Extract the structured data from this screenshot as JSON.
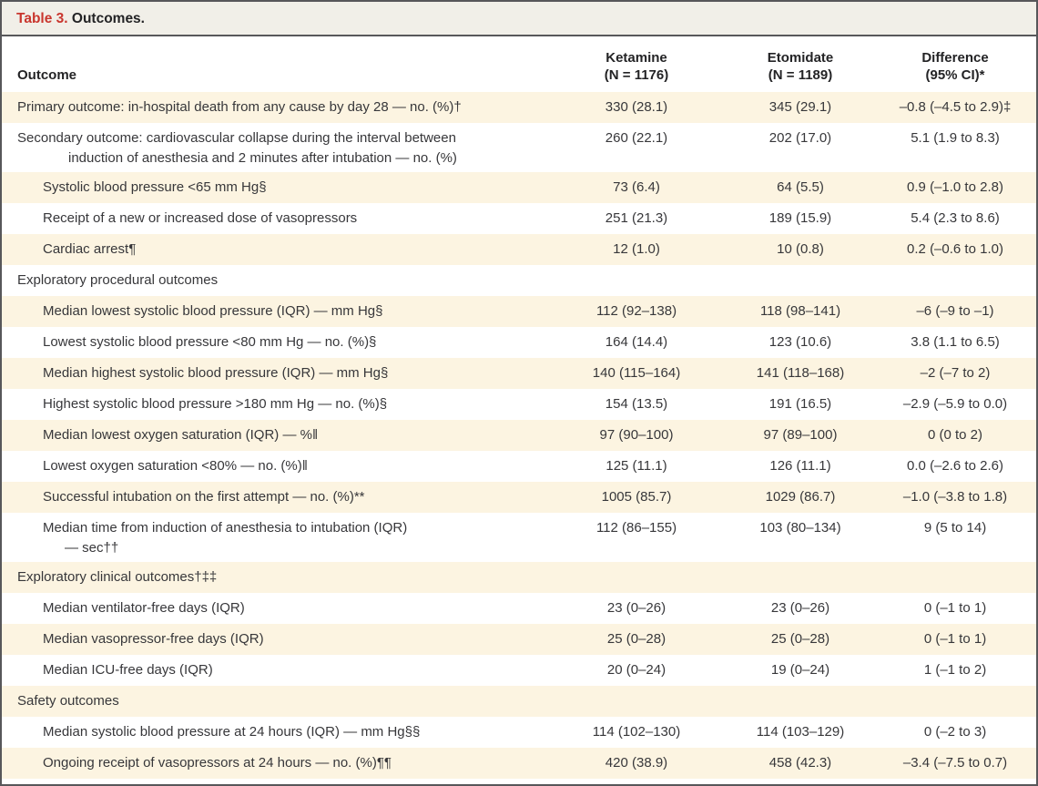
{
  "table": {
    "title_label": "Table 3.",
    "title_text": " Outcomes.",
    "columns": {
      "outcome": {
        "label": "Outcome"
      },
      "ketamine": {
        "line1": "Ketamine",
        "line2": "(N = 1176)"
      },
      "etomidate": {
        "line1": "Etomidate",
        "line2": "(N = 1189)"
      },
      "difference": {
        "line1": "Difference",
        "line2": "(95% CI)*"
      }
    }
  },
  "rows": [
    {
      "label": "Primary outcome: in-hospital death from any cause by day 28 — no. (%)†",
      "indent": 0,
      "ketamine": "330 (28.1)",
      "etomidate": "345 (29.1)",
      "difference": "–0.8 (–4.5 to 2.9)‡"
    },
    {
      "label": "Secondary outcome: cardiovascular collapse during the interval between",
      "label2": "induction of anesthesia and 2 minutes after intubation — no. (%)",
      "indent": 0,
      "ketamine": "260 (22.1)",
      "etomidate": "202 (17.0)",
      "difference": "5.1 (1.9 to 8.3)"
    },
    {
      "label": "Systolic blood pressure <65 mm Hg§",
      "indent": 1,
      "ketamine": "73 (6.4)",
      "etomidate": "64 (5.5)",
      "difference": "0.9 (–1.0 to 2.8)"
    },
    {
      "label": "Receipt of a new or increased dose of vasopressors",
      "indent": 1,
      "ketamine": "251 (21.3)",
      "etomidate": "189 (15.9)",
      "difference": "5.4 (2.3 to 8.6)"
    },
    {
      "label": "Cardiac arrest¶",
      "indent": 1,
      "ketamine": "12 (1.0)",
      "etomidate": "10 (0.8)",
      "difference": "0.2 (–0.6 to 1.0)"
    },
    {
      "label": "Exploratory procedural outcomes",
      "indent": 0,
      "ketamine": "",
      "etomidate": "",
      "difference": ""
    },
    {
      "label": "Median lowest systolic blood pressure (IQR) — mm Hg§",
      "indent": 1,
      "ketamine": "112 (92–138)",
      "etomidate": "118 (98–141)",
      "difference": "–6 (–9 to –1)"
    },
    {
      "label": "Lowest systolic blood pressure <80 mm Hg — no. (%)§",
      "indent": 1,
      "ketamine": "164 (14.4)",
      "etomidate": "123 (10.6)",
      "difference": "3.8 (1.1 to 6.5)"
    },
    {
      "label": "Median highest systolic blood pressure (IQR) — mm Hg§",
      "indent": 1,
      "ketamine": "140 (115–164)",
      "etomidate": "141 (118–168)",
      "difference": "–2 (–7 to 2)"
    },
    {
      "label": "Highest systolic blood pressure >180 mm Hg — no. (%)§",
      "indent": 1,
      "ketamine": "154 (13.5)",
      "etomidate": "191 (16.5)",
      "difference": "–2.9 (–5.9 to 0.0)"
    },
    {
      "label": "Median lowest oxygen saturation (IQR) — %‖",
      "indent": 1,
      "ketamine": "97 (90–100)",
      "etomidate": "97 (89–100)",
      "difference": "0 (0 to 2)"
    },
    {
      "label": "Lowest oxygen saturation <80% — no. (%)‖",
      "indent": 1,
      "ketamine": "125 (11.1)",
      "etomidate": "126 (11.1)",
      "difference": "0.0 (–2.6 to 2.6)"
    },
    {
      "label": "Successful intubation on the first attempt — no. (%)**",
      "indent": 1,
      "ketamine": "1005 (85.7)",
      "etomidate": "1029 (86.7)",
      "difference": "–1.0 (–3.8 to 1.8)"
    },
    {
      "label": "Median time from induction of anesthesia to intubation (IQR)",
      "label2": "— sec††",
      "indent": 1,
      "ketamine": "112 (86–155)",
      "etomidate": "103 (80–134)",
      "difference": "9 (5 to 14)"
    },
    {
      "label": "Exploratory clinical outcomes†‡‡",
      "indent": 0,
      "ketamine": "",
      "etomidate": "",
      "difference": ""
    },
    {
      "label": "Median ventilator-free days (IQR)",
      "indent": 1,
      "ketamine": "23 (0–26)",
      "etomidate": "23 (0–26)",
      "difference": "0 (–1 to 1)"
    },
    {
      "label": "Median vasopressor-free days (IQR)",
      "indent": 1,
      "ketamine": "25 (0–28)",
      "etomidate": "25 (0–28)",
      "difference": "0 (–1 to 1)"
    },
    {
      "label": "Median ICU-free days (IQR)",
      "indent": 1,
      "ketamine": "20 (0–24)",
      "etomidate": "19 (0–24)",
      "difference": "1 (–1 to 2)"
    },
    {
      "label": "Safety outcomes",
      "indent": 0,
      "ketamine": "",
      "etomidate": "",
      "difference": ""
    },
    {
      "label": "Median systolic blood pressure at 24 hours (IQR) — mm Hg§§",
      "indent": 1,
      "ketamine": "114 (102–130)",
      "etomidate": "114 (103–129)",
      "difference": "0 (–2 to 3)"
    },
    {
      "label": "Ongoing receipt of vasopressors at 24 hours — no. (%)¶¶",
      "indent": 1,
      "ketamine": "420 (38.9)",
      "etomidate": "458 (42.3)",
      "difference": "–3.4 (–7.5 to 0.7)"
    }
  ],
  "colors": {
    "accent_red": "#c9362e",
    "shaded_row": "#fcf4e1",
    "title_strip": "#f1efe8",
    "border": "#57575a",
    "text": "#37373a"
  }
}
